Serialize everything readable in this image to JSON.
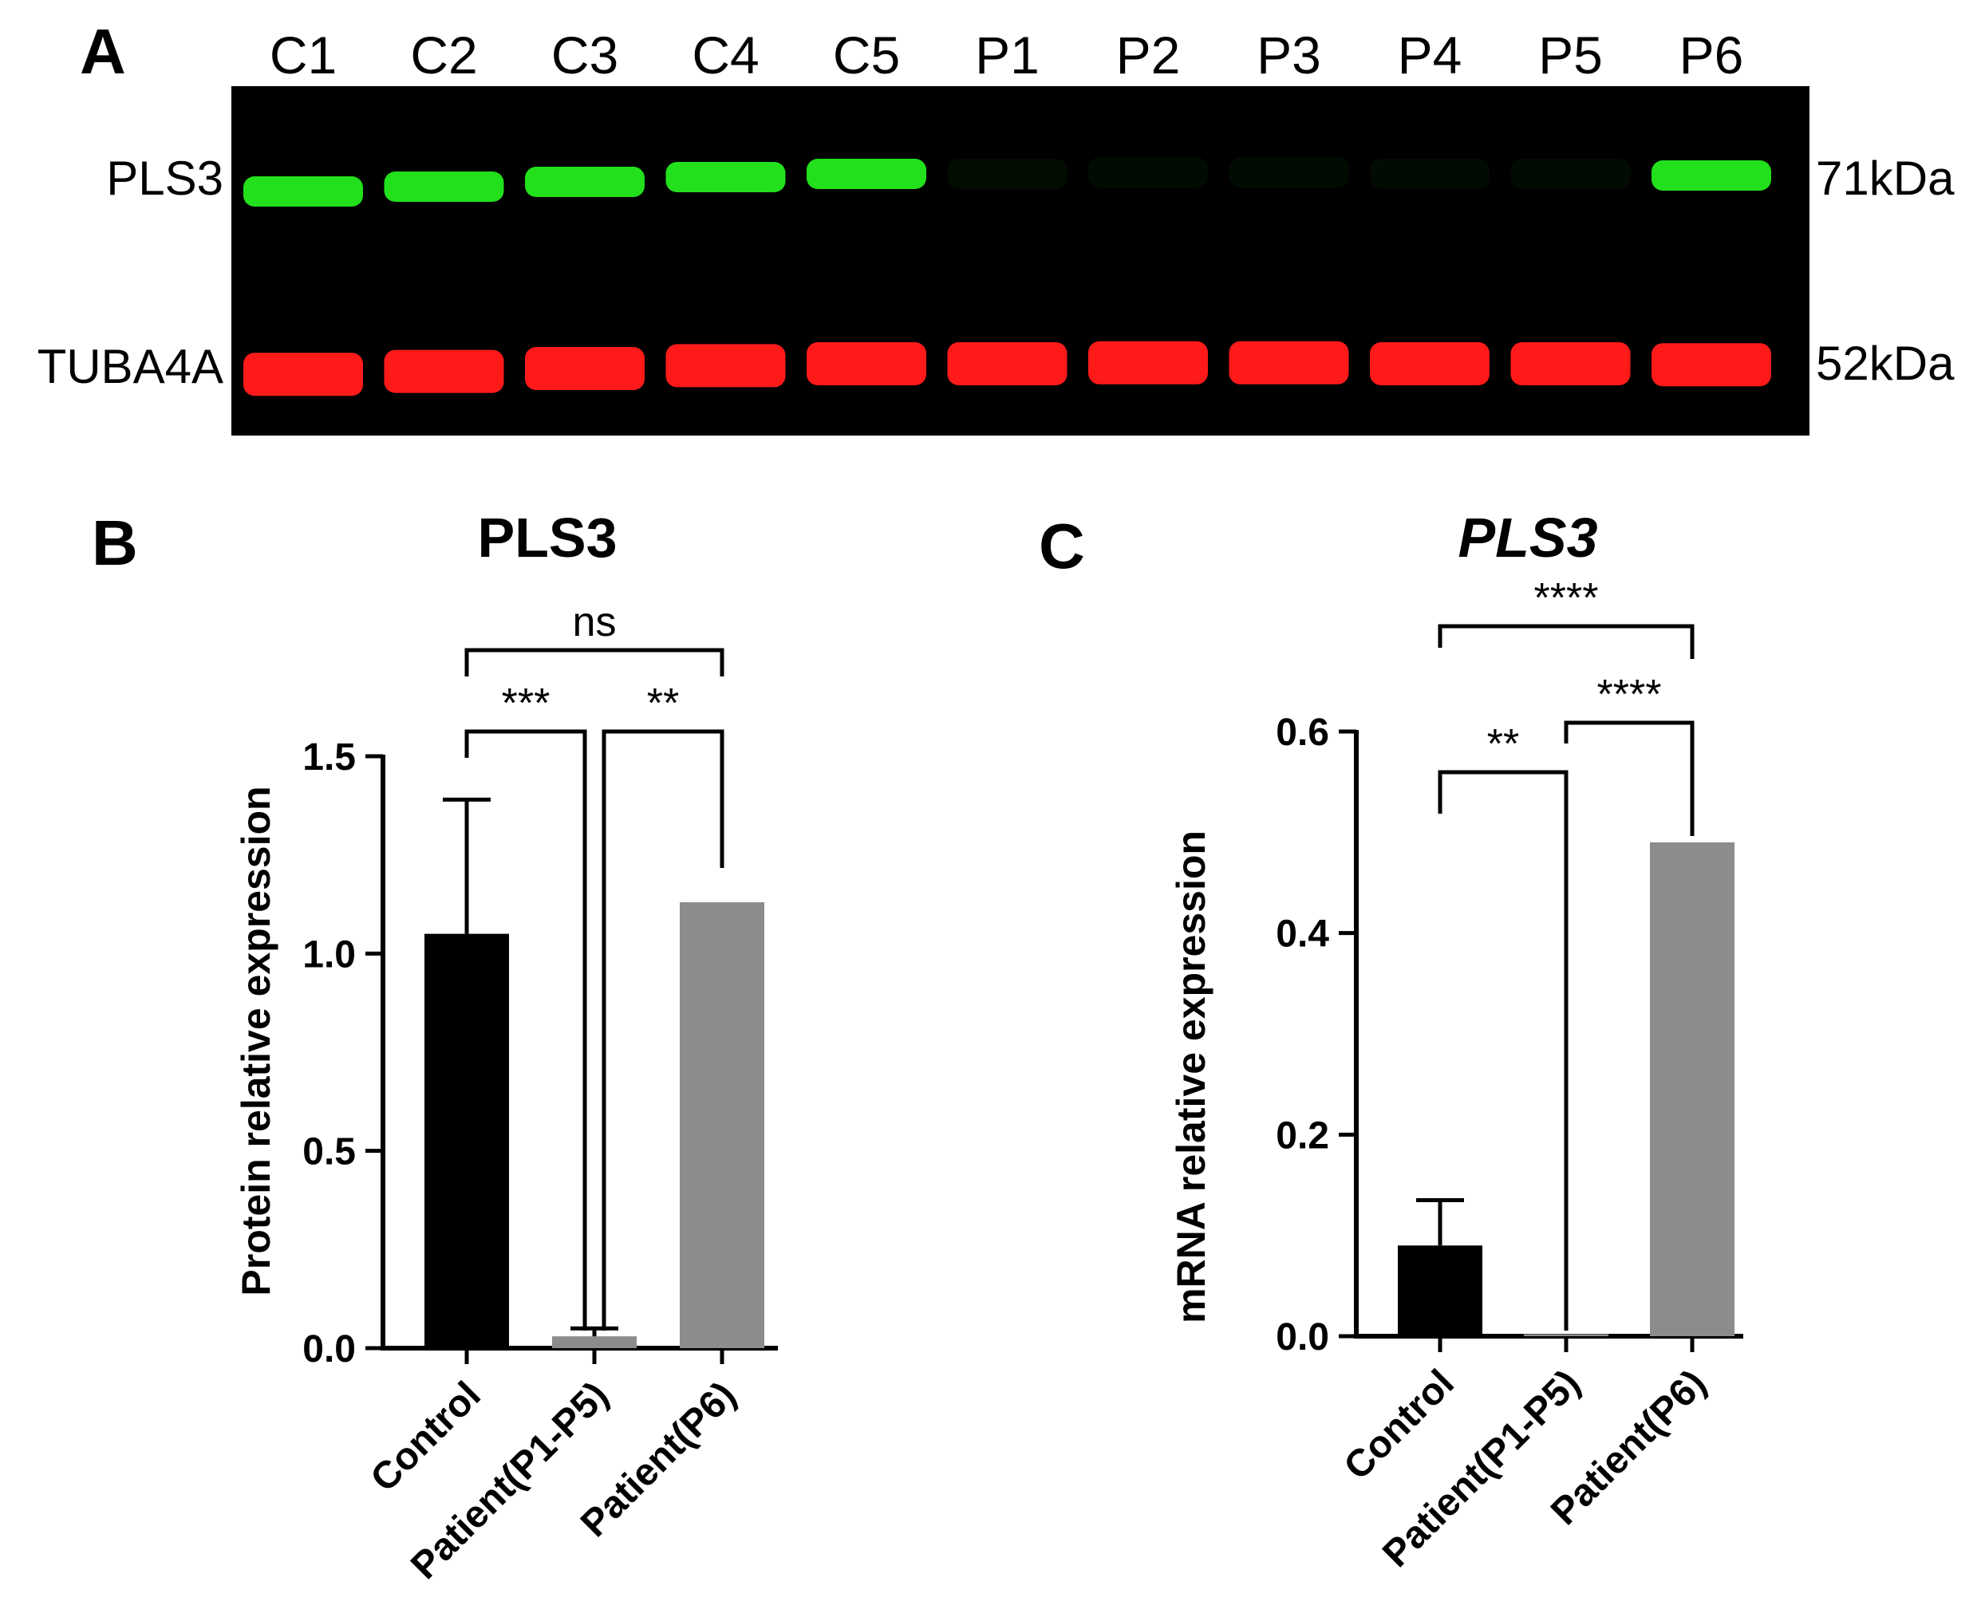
{
  "panel_a": {
    "letter": "A",
    "lanes": [
      "C1",
      "C2",
      "C3",
      "C4",
      "C5",
      "P1",
      "P2",
      "P3",
      "P4",
      "P5",
      "P6"
    ],
    "rows": [
      {
        "protein": "PLS3",
        "size": "71kDa",
        "color": "#22e01c",
        "intensity": [
          1,
          1,
          1,
          1,
          1,
          0.06,
          0.05,
          0.05,
          0.05,
          0.05,
          1
        ]
      },
      {
        "protein": "TUBA4A",
        "size": "52kDa",
        "color": "#ff1a1a",
        "intensity": [
          1,
          1,
          1,
          1,
          1,
          1,
          1,
          1,
          1,
          1,
          1
        ]
      }
    ]
  },
  "chart_data": [
    {
      "panel": "B",
      "type": "bar",
      "title": "PLS3",
      "title_italic": false,
      "ylabel": "Protein relative expression",
      "ylim": [
        0,
        1.5
      ],
      "yticks": [
        "0.0",
        "0.5",
        "1.0",
        "1.5"
      ],
      "categories": [
        "Control",
        "Patient(P1-P5)",
        "Patient(P6)"
      ],
      "values": [
        1.05,
        0.03,
        1.13
      ],
      "errors": [
        0.34,
        0.02,
        0
      ],
      "colors": [
        "#000000",
        "#8c8c8c",
        "#8c8c8c"
      ],
      "comparisons": [
        {
          "from": 0,
          "to": 1,
          "label": "***"
        },
        {
          "from": 1,
          "to": 2,
          "label": "**"
        },
        {
          "from": 0,
          "to": 2,
          "label": "ns"
        }
      ]
    },
    {
      "panel": "C",
      "type": "bar",
      "title": "PLS3",
      "title_italic": true,
      "ylabel": "mRNA relative expression",
      "ylim": [
        0,
        0.6
      ],
      "yticks": [
        "0.0",
        "0.2",
        "0.4",
        "0.6"
      ],
      "categories": [
        "Control",
        "Patient(P1-P5)",
        "Patient(P6)"
      ],
      "values": [
        0.09,
        0.002,
        0.49
      ],
      "errors": [
        0.045,
        0,
        0
      ],
      "colors": [
        "#000000",
        "#8c8c8c",
        "#8c8c8c"
      ],
      "comparisons": [
        {
          "from": 0,
          "to": 1,
          "label": "**"
        },
        {
          "from": 1,
          "to": 2,
          "label": "****"
        },
        {
          "from": 0,
          "to": 2,
          "label": "****"
        }
      ]
    }
  ]
}
